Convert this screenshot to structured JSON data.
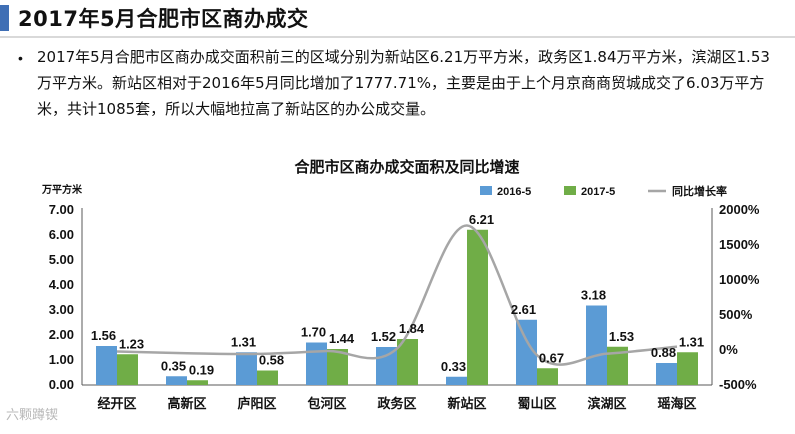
{
  "header": {
    "title": "2017年5月合肥市区商办成交"
  },
  "summary": {
    "bullet": "•",
    "text": "2017年5月合肥市区商办成交面积前三的区域分别为新站区6.21万平方米，政务区1.84万平方米，滨湖区1.53万平方米。新站区相对于2016年5月同比增加了1777.71%，主要是由于上个月京商商贸城成交了6.03万平方米，共计1085套，所以大幅地拉高了新站区的办公成交量。"
  },
  "watermark": "六颗蹲锲",
  "colors": {
    "series_2016": "#5b9bd5",
    "series_2017": "#70ad47",
    "growth_line": "#a6a6a6",
    "accent": "#3f6fb5"
  },
  "chart_data": {
    "type": "bar",
    "title": "合肥市区商办成交面积及同比增速",
    "ylabel": "万平方米",
    "y2label": "",
    "ylim": [
      0,
      7
    ],
    "y2lim": [
      -500,
      2000
    ],
    "yticks": [
      "7.00",
      "6.00",
      "5.00",
      "4.00",
      "3.00",
      "2.00",
      "1.00",
      "0.00"
    ],
    "y2ticks": [
      "2000%",
      "1500%",
      "1000%",
      "500%",
      "0%",
      "-500%"
    ],
    "legend_position": "top-right",
    "categories": [
      "经开区",
      "高新区",
      "庐阳区",
      "包河区",
      "政务区",
      "新站区",
      "蜀山区",
      "滨湖区",
      "瑶海区"
    ],
    "series": [
      {
        "name": "2016-5",
        "type": "bar",
        "axis": "left",
        "values": [
          1.56,
          0.35,
          1.31,
          1.7,
          1.52,
          0.33,
          2.61,
          3.18,
          0.88
        ]
      },
      {
        "name": "2017-5",
        "type": "bar",
        "axis": "left",
        "values": [
          1.23,
          0.19,
          0.58,
          1.44,
          1.84,
          6.21,
          0.67,
          1.53,
          1.31
        ]
      },
      {
        "name": "同比增长率",
        "type": "line",
        "axis": "right",
        "values": [
          -21,
          -46,
          -56,
          -15,
          21,
          1778,
          -74,
          -52,
          49
        ]
      }
    ]
  }
}
